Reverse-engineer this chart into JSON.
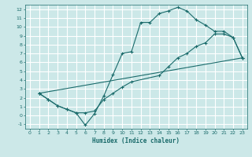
{
  "bg_color": "#cce8e8",
  "line_color": "#1a6b6b",
  "grid_color": "#ffffff",
  "xlabel": "Humidex (Indice chaleur)",
  "xlim": [
    -0.5,
    23.5
  ],
  "ylim": [
    -1.5,
    12.5
  ],
  "xticks": [
    0,
    1,
    2,
    3,
    4,
    5,
    6,
    7,
    8,
    9,
    10,
    11,
    12,
    13,
    14,
    15,
    16,
    17,
    18,
    19,
    20,
    21,
    22,
    23
  ],
  "yticks": [
    -1,
    0,
    1,
    2,
    3,
    4,
    5,
    6,
    7,
    8,
    9,
    10,
    11,
    12
  ],
  "line1_x": [
    1,
    2,
    3,
    4,
    5,
    6,
    7,
    8,
    9,
    10,
    11,
    12,
    13,
    14,
    15,
    16,
    17,
    18,
    19,
    20,
    21,
    22,
    23
  ],
  "line1_y": [
    2.5,
    1.8,
    1.1,
    0.7,
    0.3,
    -1.1,
    0.2,
    2.2,
    4.6,
    7.0,
    7.2,
    10.5,
    10.5,
    11.5,
    11.8,
    12.2,
    11.8,
    10.8,
    10.2,
    9.5,
    9.5,
    8.8,
    6.5
  ],
  "line2_x": [
    1,
    2,
    3,
    4,
    5,
    6,
    7,
    8,
    9,
    10,
    11,
    14,
    15,
    16,
    17,
    18,
    19,
    20,
    21,
    22,
    23
  ],
  "line2_y": [
    2.5,
    1.8,
    1.1,
    0.7,
    0.3,
    0.3,
    0.5,
    1.8,
    2.5,
    3.2,
    3.8,
    4.5,
    5.5,
    6.5,
    7.0,
    7.8,
    8.2,
    9.2,
    9.2,
    8.8,
    6.5
  ],
  "line3_x": [
    1,
    23
  ],
  "line3_y": [
    2.5,
    6.5
  ]
}
